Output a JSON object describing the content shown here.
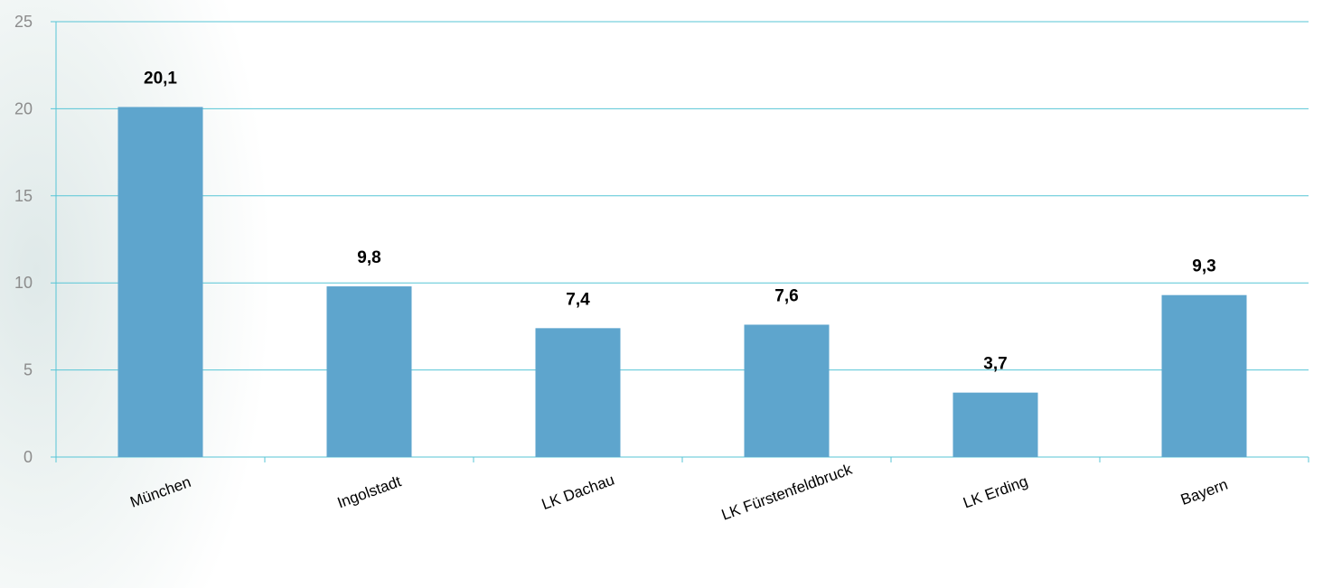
{
  "colors": {
    "bar": "#5ea5cd",
    "grid": "#57c5d6",
    "tick_text": "#8c8c8c",
    "label_text": "#000000"
  },
  "chart_data": {
    "type": "bar",
    "categories": [
      "München",
      "Ingolstadt",
      "LK Dachau",
      "LK Fürstenfeldbruck",
      "LK Erding",
      "Bayern"
    ],
    "values": [
      20.1,
      9.8,
      7.4,
      7.6,
      3.7,
      9.3
    ],
    "value_labels": [
      "20,1",
      "9,8",
      "7,4",
      "7,6",
      "3,7",
      "9,3"
    ],
    "title": "",
    "xlabel": "",
    "ylabel": "",
    "ylim": [
      0,
      25
    ],
    "yticks": [
      0,
      5,
      10,
      15,
      20,
      25
    ],
    "ytick_labels": [
      "0",
      "5",
      "10",
      "15",
      "20",
      "25"
    ],
    "grid": true,
    "legend": "none"
  }
}
